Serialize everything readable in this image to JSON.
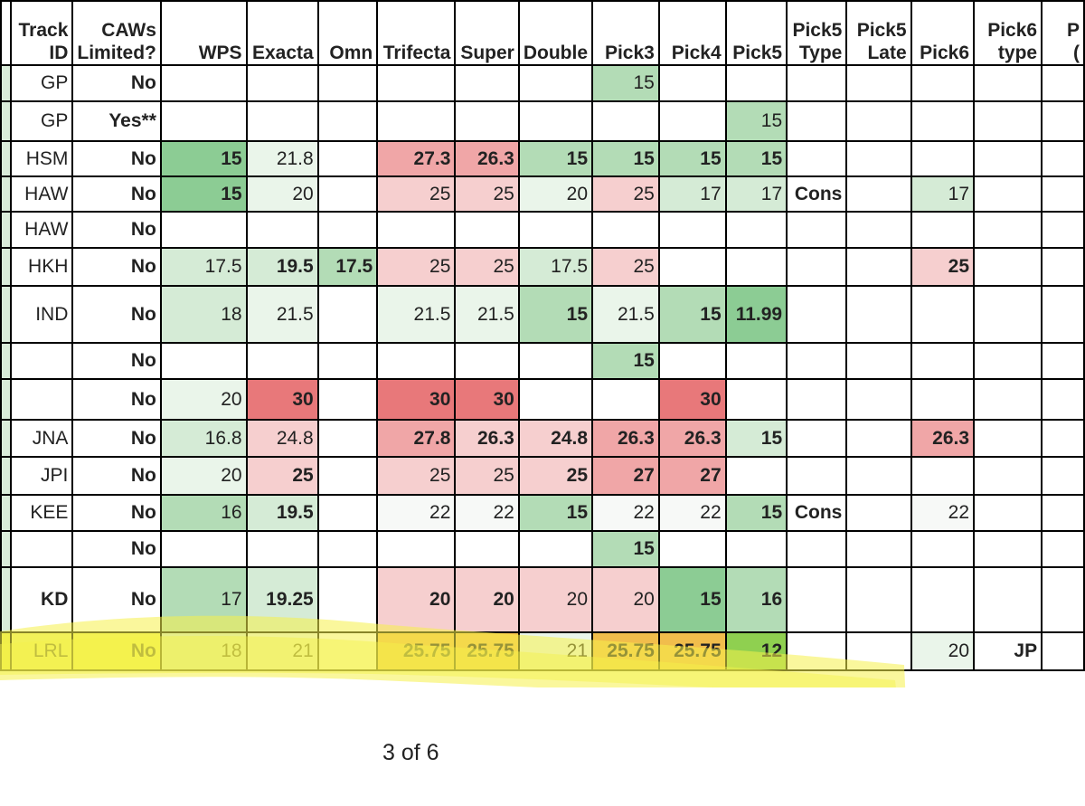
{
  "header": {
    "track_id": [
      "Track",
      "ID"
    ],
    "caws": [
      "CAWs",
      "Limited?"
    ],
    "wps": "WPS",
    "exacta": "Exacta",
    "omni": "Omn",
    "trifecta": "Trifecta",
    "super": "Super",
    "double": "Double",
    "pick3": "Pick3",
    "pick4": "Pick4",
    "pick5": "Pick5",
    "pick5_type": [
      "Pick5",
      "Type"
    ],
    "pick5_late": [
      "Pick5",
      "Late"
    ],
    "pick6": "Pick6",
    "pick6_type": [
      "Pick6",
      "type"
    ],
    "cut_col": [
      "P",
      "("
    ]
  },
  "rows": [
    {
      "id": "GP",
      "caws": "No",
      "wps": "",
      "exacta": "",
      "omni": "",
      "trifecta": "",
      "super": "",
      "double": "",
      "pick3": "15",
      "pick4": "",
      "pick5": "",
      "pick5_type": "",
      "pick5_late": "",
      "pick6": "",
      "pick6_type": ""
    },
    {
      "id": "GP",
      "caws": "Yes**",
      "wps": "",
      "exacta": "",
      "omni": "",
      "trifecta": "",
      "super": "",
      "double": "",
      "pick3": "",
      "pick4": "",
      "pick5": "15",
      "pick5_type": "",
      "pick5_late": "",
      "pick6": "",
      "pick6_type": ""
    },
    {
      "id": "HSM",
      "caws": "No",
      "wps": "15",
      "exacta": "21.8",
      "omni": "",
      "trifecta": "27.3",
      "super": "26.3",
      "double": "15",
      "pick3": "15",
      "pick4": "15",
      "pick5": "15",
      "pick5_type": "",
      "pick5_late": "",
      "pick6": "",
      "pick6_type": ""
    },
    {
      "id": "HAW",
      "caws": "No",
      "wps": "15",
      "exacta": "20",
      "omni": "",
      "trifecta": "25",
      "super": "25",
      "double": "20",
      "pick3": "25",
      "pick4": "17",
      "pick5": "17",
      "pick5_type": "Cons",
      "pick5_late": "",
      "pick6": "17",
      "pick6_type": ""
    },
    {
      "id": "HAW",
      "caws": "No",
      "wps": "",
      "exacta": "",
      "omni": "",
      "trifecta": "",
      "super": "",
      "double": "",
      "pick3": "",
      "pick4": "",
      "pick5": "",
      "pick5_type": "",
      "pick5_late": "",
      "pick6": "",
      "pick6_type": ""
    },
    {
      "id": "HKH",
      "caws": "No",
      "wps": "17.5",
      "exacta": "19.5",
      "omni": "17.5",
      "trifecta": "25",
      "super": "25",
      "double": "17.5",
      "pick3": "25",
      "pick4": "",
      "pick5": "",
      "pick5_type": "",
      "pick5_late": "",
      "pick6": "25",
      "pick6_type": ""
    },
    {
      "id": "IND",
      "caws": "No",
      "wps": "18",
      "exacta": "21.5",
      "omni": "",
      "trifecta": "21.5",
      "super": "21.5",
      "double": "15",
      "pick3": "21.5",
      "pick4": "15",
      "pick5": "11.99",
      "pick5_type": "",
      "pick5_late": "",
      "pick6": "",
      "pick6_type": ""
    },
    {
      "id": "",
      "caws": "No",
      "wps": "",
      "exacta": "",
      "omni": "",
      "trifecta": "",
      "super": "",
      "double": "",
      "pick3": "15",
      "pick4": "",
      "pick5": "",
      "pick5_type": "",
      "pick5_late": "",
      "pick6": "",
      "pick6_type": ""
    },
    {
      "id": "",
      "caws": "No",
      "wps": "20",
      "exacta": "30",
      "omni": "",
      "trifecta": "30",
      "super": "30",
      "double": "",
      "pick3": "",
      "pick4": "30",
      "pick5": "",
      "pick5_type": "",
      "pick5_late": "",
      "pick6": "",
      "pick6_type": ""
    },
    {
      "id": "JNA",
      "caws": "No",
      "wps": "16.8",
      "exacta": "24.8",
      "omni": "",
      "trifecta": "27.8",
      "super": "26.3",
      "double": "24.8",
      "pick3": "26.3",
      "pick4": "26.3",
      "pick5": "15",
      "pick5_type": "",
      "pick5_late": "",
      "pick6": "26.3",
      "pick6_type": ""
    },
    {
      "id": "JPI",
      "caws": "No",
      "wps": "20",
      "exacta": "25",
      "omni": "",
      "trifecta": "25",
      "super": "25",
      "double": "25",
      "pick3": "27",
      "pick4": "27",
      "pick5": "",
      "pick5_type": "",
      "pick5_late": "",
      "pick6": "",
      "pick6_type": ""
    },
    {
      "id": "KEE",
      "caws": "No",
      "wps": "16",
      "exacta": "19.5",
      "omni": "",
      "trifecta": "22",
      "super": "22",
      "double": "15",
      "pick3": "22",
      "pick4": "22",
      "pick5": "15",
      "pick5_type": "Cons",
      "pick5_late": "",
      "pick6": "22",
      "pick6_type": ""
    },
    {
      "id": "",
      "caws": "No",
      "wps": "",
      "exacta": "",
      "omni": "",
      "trifecta": "",
      "super": "",
      "double": "",
      "pick3": "15",
      "pick4": "",
      "pick5": "",
      "pick5_type": "",
      "pick5_late": "",
      "pick6": "",
      "pick6_type": ""
    },
    {
      "id": "KD",
      "caws": "No",
      "wps": "17",
      "exacta": "19.25",
      "omni": "",
      "trifecta": "20",
      "super": "20",
      "double": "20",
      "pick3": "20",
      "pick4": "15",
      "pick5": "16",
      "pick5_type": "",
      "pick5_late": "",
      "pick6": "",
      "pick6_type": ""
    },
    {
      "id": "LRL",
      "caws": "No",
      "wps": "18",
      "exacta": "21",
      "omni": "",
      "trifecta": "25.75",
      "super": "25.75",
      "double": "21",
      "pick3": "25.75",
      "pick4": "25.75",
      "pick5": "12",
      "pick5_type": "",
      "pick5_late": "",
      "pick6": "20",
      "pick6_type": "JP"
    }
  ],
  "colors": {
    "green_strong": "#8ccc94",
    "green_mid": "#b3dcb6",
    "green_light": "#d5ebd6",
    "green_faint": "#eaf5ea",
    "red_strong": "#e8787a",
    "red_mid": "#f0a6a7",
    "red_light": "#f6cfcf",
    "orange": "#f1bd4c",
    "yellow_highlight": "#f5f14a",
    "accent_red": "#e0322a",
    "accent_green": "#3fae53"
  },
  "page_number": "3 of 6"
}
